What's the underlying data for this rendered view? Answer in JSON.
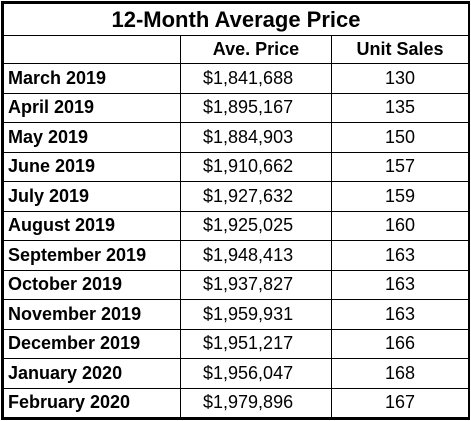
{
  "table": {
    "title": "12-Month Average Price",
    "headers": [
      "",
      "Ave. Price",
      "Unit Sales"
    ],
    "rows": [
      {
        "month": "March 2019",
        "price": "$1,841,688",
        "sales": "130"
      },
      {
        "month": "April 2019",
        "price": "$1,895,167",
        "sales": "135"
      },
      {
        "month": "May 2019",
        "price": "$1,884,903",
        "sales": "150"
      },
      {
        "month": "June 2019",
        "price": "$1,910,662",
        "sales": "157"
      },
      {
        "month": "July 2019",
        "price": "$1,927,632",
        "sales": "159"
      },
      {
        "month": "August 2019",
        "price": "$1,925,025",
        "sales": "160"
      },
      {
        "month": "September 2019",
        "price": "$1,948,413",
        "sales": "163"
      },
      {
        "month": "October 2019",
        "price": "$1,937,827",
        "sales": "163"
      },
      {
        "month": "November 2019",
        "price": "$1,959,931",
        "sales": "163"
      },
      {
        "month": "December 2019",
        "price": "$1,951,217",
        "sales": "166"
      },
      {
        "month": "January 2020",
        "price": "$1,956,047",
        "sales": "168"
      },
      {
        "month": "February 2020",
        "price": "$1,979,896",
        "sales": "167"
      }
    ]
  }
}
